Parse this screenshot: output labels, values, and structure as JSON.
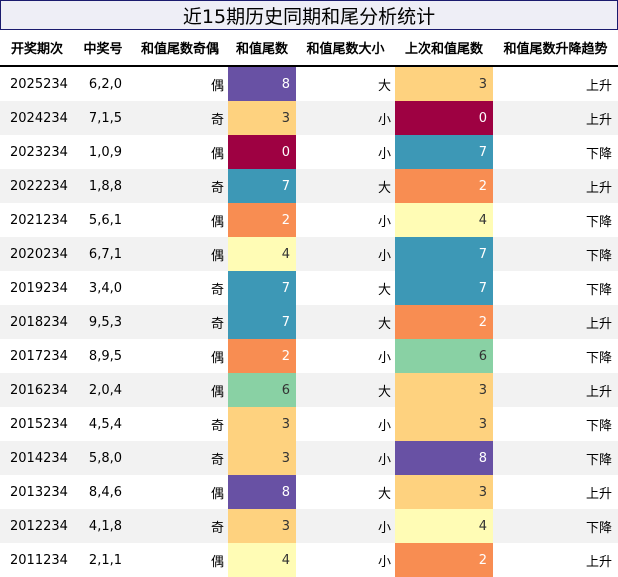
{
  "title": "近15期历史同期和尾分析统计",
  "headers": [
    "开奖期次",
    "中奖号",
    "和值尾数奇偶",
    "和值尾数",
    "和值尾数大小",
    "上次和值尾数",
    "和值尾数升降趋势"
  ],
  "colors": {
    "0": "#9e0142",
    "2": "#f88d52",
    "3": "#fed27f",
    "4": "#fffcb5",
    "6": "#89d1a4",
    "7": "#3d98b6",
    "8": "#6851a4"
  },
  "rows": [
    {
      "issue": "2025234",
      "nums": "6,2,0",
      "parity": "偶",
      "tail": "8",
      "size": "大",
      "prev": "3",
      "trend": "上升"
    },
    {
      "issue": "2024234",
      "nums": "7,1,5",
      "parity": "奇",
      "tail": "3",
      "size": "小",
      "prev": "0",
      "trend": "上升"
    },
    {
      "issue": "2023234",
      "nums": "1,0,9",
      "parity": "偶",
      "tail": "0",
      "size": "小",
      "prev": "7",
      "trend": "下降"
    },
    {
      "issue": "2022234",
      "nums": "1,8,8",
      "parity": "奇",
      "tail": "7",
      "size": "大",
      "prev": "2",
      "trend": "上升"
    },
    {
      "issue": "2021234",
      "nums": "5,6,1",
      "parity": "偶",
      "tail": "2",
      "size": "小",
      "prev": "4",
      "trend": "下降"
    },
    {
      "issue": "2020234",
      "nums": "6,7,1",
      "parity": "偶",
      "tail": "4",
      "size": "小",
      "prev": "7",
      "trend": "下降"
    },
    {
      "issue": "2019234",
      "nums": "3,4,0",
      "parity": "奇",
      "tail": "7",
      "size": "大",
      "prev": "7",
      "trend": "下降"
    },
    {
      "issue": "2018234",
      "nums": "9,5,3",
      "parity": "奇",
      "tail": "7",
      "size": "大",
      "prev": "2",
      "trend": "上升"
    },
    {
      "issue": "2017234",
      "nums": "8,9,5",
      "parity": "偶",
      "tail": "2",
      "size": "小",
      "prev": "6",
      "trend": "下降"
    },
    {
      "issue": "2016234",
      "nums": "2,0,4",
      "parity": "偶",
      "tail": "6",
      "size": "大",
      "prev": "3",
      "trend": "上升"
    },
    {
      "issue": "2015234",
      "nums": "4,5,4",
      "parity": "奇",
      "tail": "3",
      "size": "小",
      "prev": "3",
      "trend": "下降"
    },
    {
      "issue": "2014234",
      "nums": "5,8,0",
      "parity": "奇",
      "tail": "3",
      "size": "小",
      "prev": "8",
      "trend": "下降"
    },
    {
      "issue": "2013234",
      "nums": "8,4,6",
      "parity": "偶",
      "tail": "8",
      "size": "大",
      "prev": "3",
      "trend": "上升"
    },
    {
      "issue": "2012234",
      "nums": "4,1,8",
      "parity": "奇",
      "tail": "3",
      "size": "小",
      "prev": "4",
      "trend": "下降"
    },
    {
      "issue": "2011234",
      "nums": "2,1,1",
      "parity": "偶",
      "tail": "4",
      "size": "小",
      "prev": "2",
      "trend": "上升"
    }
  ]
}
